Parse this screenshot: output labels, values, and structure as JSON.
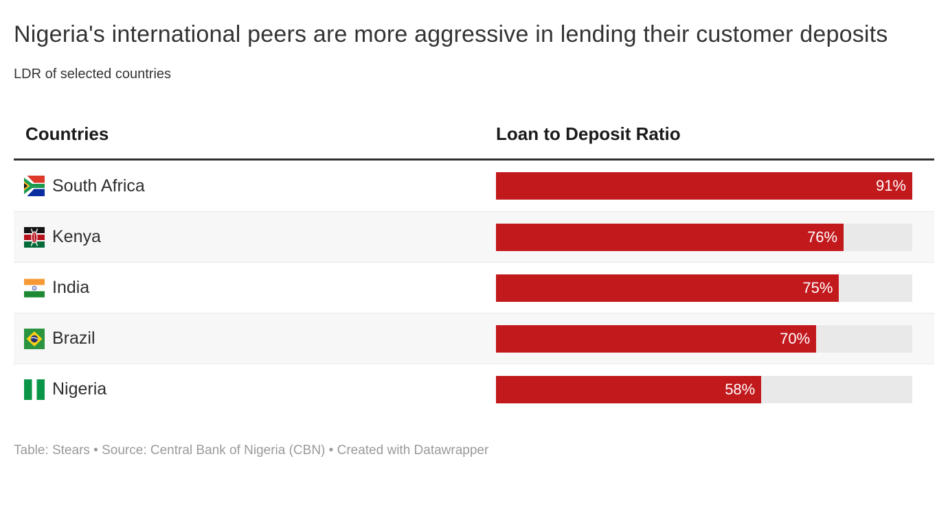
{
  "header": {
    "title": "Nigeria's international peers are more aggressive in lending their customer deposits",
    "subtitle": "LDR of selected countries"
  },
  "table": {
    "columns": [
      "Countries",
      "Loan to Deposit Ratio"
    ],
    "scale_max": 91,
    "rows": [
      {
        "country": "South Africa",
        "flag": "south-africa-flag-icon",
        "value": 91,
        "label": "91%"
      },
      {
        "country": "Kenya",
        "flag": "kenya-flag-icon",
        "value": 76,
        "label": "76%"
      },
      {
        "country": "India",
        "flag": "india-flag-icon",
        "value": 75,
        "label": "75%"
      },
      {
        "country": "Brazil",
        "flag": "brazil-flag-icon",
        "value": 70,
        "label": "70%"
      },
      {
        "country": "Nigeria",
        "flag": "nigeria-flag-icon",
        "value": 58,
        "label": "58%"
      }
    ]
  },
  "footer": {
    "prefix_table": "Table: ",
    "table_credit": "Stears",
    "separator": " • ",
    "prefix_source": "Source: ",
    "source": "Central Bank of Nigeria (CBN)",
    "prefix_created": "Created with ",
    "tool": "Datawrapper"
  },
  "colors": {
    "bar": "#c2191d",
    "bar_track": "#e9e9e9",
    "row_stripe": "#f7f7f7",
    "header_rule": "#2f2f2f",
    "bar_label_text": "#ffffff",
    "footer_text": "#999999"
  },
  "chart_data": {
    "type": "bar",
    "orientation": "horizontal",
    "title": "Nigeria's international peers are more aggressive in lending their customer deposits",
    "subtitle": "LDR of selected countries",
    "categories": [
      "South Africa",
      "Kenya",
      "India",
      "Brazil",
      "Nigeria"
    ],
    "values": [
      91,
      76,
      75,
      70,
      58
    ],
    "value_suffix": "%",
    "xlabel": "Loan to Deposit Ratio",
    "ylabel": "Countries",
    "xlim": [
      0,
      91
    ],
    "grid": false,
    "legend": false,
    "bar_color": "#c2191d",
    "annotations": "Table: Stears • Source: Central Bank of Nigeria (CBN) • Created with Datawrapper"
  }
}
